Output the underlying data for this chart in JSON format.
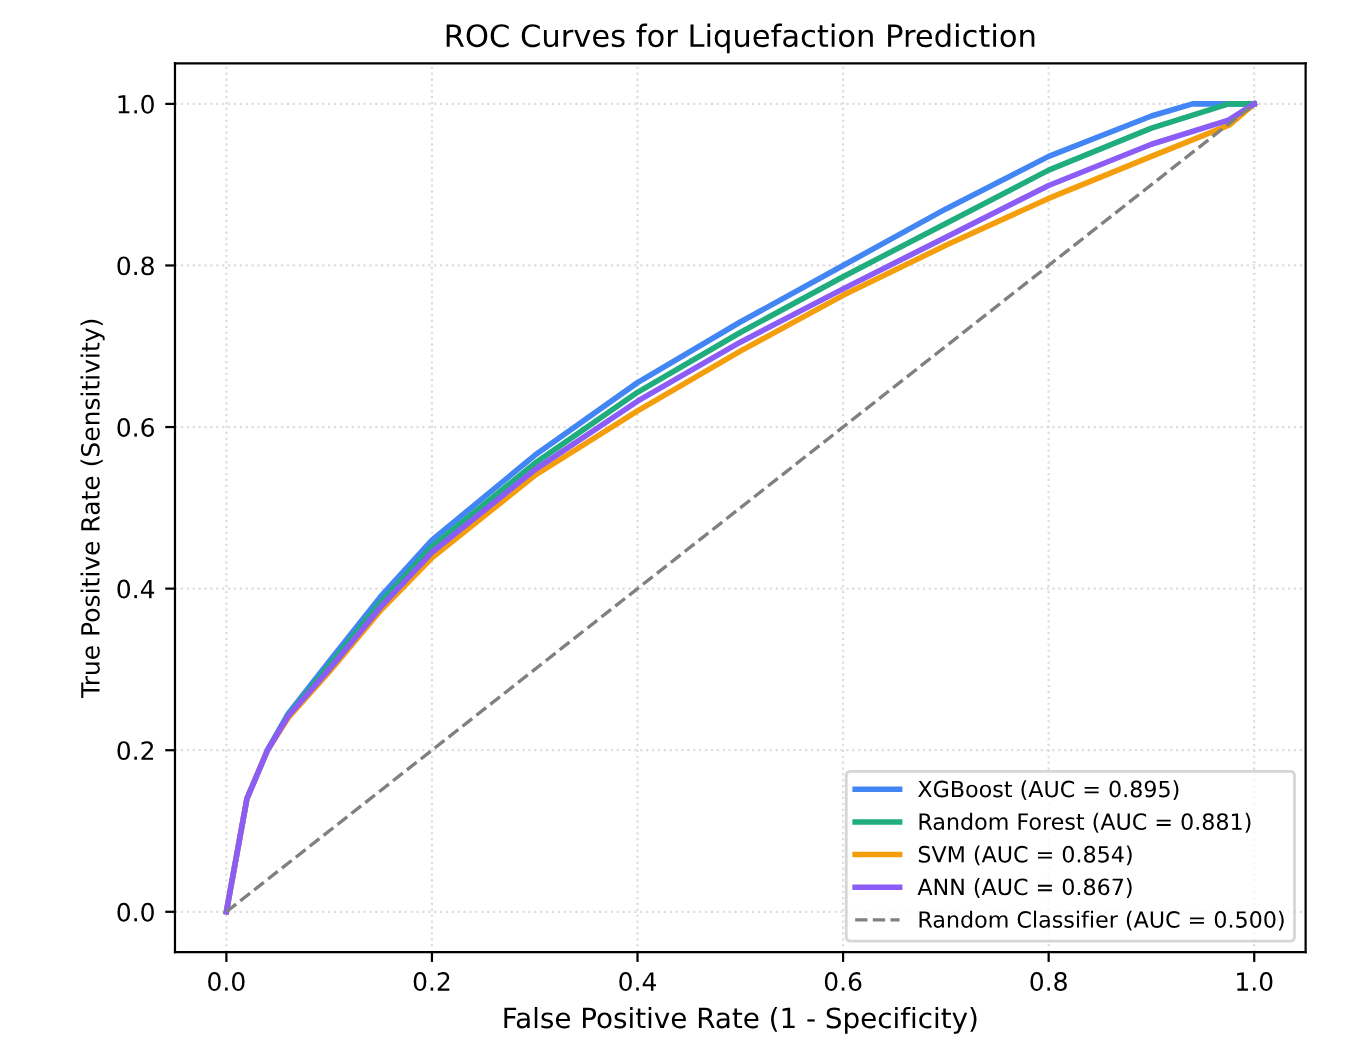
{
  "chart_data": {
    "type": "line",
    "title": "ROC Curves for Liquefaction Prediction",
    "xlabel": "False Positive Rate (1 - Specificity)",
    "ylabel": "True Positive Rate (Sensitivity)",
    "xlim": [
      -0.05,
      1.05
    ],
    "ylim": [
      -0.05,
      1.05
    ],
    "xticks": [
      {
        "value": 0,
        "label": "0.0"
      },
      {
        "value": 0.2,
        "label": "0.2"
      },
      {
        "value": 0.4,
        "label": "0.4"
      },
      {
        "value": 0.6,
        "label": "0.6"
      },
      {
        "value": 0.8,
        "label": "0.8"
      },
      {
        "value": 1,
        "label": "1.0"
      }
    ],
    "yticks": [
      {
        "value": 0,
        "label": "0.0"
      },
      {
        "value": 0.2,
        "label": "0.2"
      },
      {
        "value": 0.4,
        "label": "0.4"
      },
      {
        "value": 0.6,
        "label": "0.6"
      },
      {
        "value": 0.8,
        "label": "0.8"
      },
      {
        "value": 1,
        "label": "1.0"
      }
    ],
    "grid": true,
    "legend": "bottom right",
    "series": [
      {
        "name": "XGBoost (AUC = 0.895)",
        "color": "#4285f4",
        "line_style": "solid",
        "x": [
          0,
          0.02,
          0.04,
          0.06,
          0.1,
          0.15,
          0.2,
          0.3,
          0.4,
          0.5,
          0.6,
          0.7,
          0.8,
          0.9,
          0.94,
          1
        ],
        "values": [
          0,
          0.14,
          0.2,
          0.245,
          0.31,
          0.39,
          0.46,
          0.565,
          0.655,
          0.73,
          0.8,
          0.87,
          0.935,
          0.985,
          1,
          1
        ]
      },
      {
        "name": "Random Forest (AUC = 0.881)",
        "color": "#1fad7e",
        "line_style": "solid",
        "x": [
          0.04,
          0.06,
          0.1,
          0.15,
          0.2,
          0.3,
          0.4,
          0.5,
          0.6,
          0.7,
          0.8,
          0.9,
          0.975,
          1
        ],
        "values": [
          0.2,
          0.243,
          0.305,
          0.383,
          0.452,
          0.555,
          0.643,
          0.717,
          0.786,
          0.852,
          0.918,
          0.97,
          1,
          1
        ]
      },
      {
        "name": "SVM (AUC = 0.854)",
        "color": "#f59e0b",
        "line_style": "solid",
        "x": [
          0,
          0.02,
          0.04,
          0.06,
          0.1,
          0.15,
          0.2,
          0.3,
          0.4,
          0.5,
          0.6,
          0.7,
          0.8,
          0.9,
          0.976,
          1
        ],
        "values": [
          0,
          0.14,
          0.2,
          0.24,
          0.297,
          0.373,
          0.438,
          0.54,
          0.62,
          0.694,
          0.763,
          0.825,
          0.883,
          0.935,
          0.974,
          1
        ]
      },
      {
        "name": "ANN (AUC = 0.867)",
        "color": "#8b5cf6",
        "line_style": "solid",
        "x": [
          0,
          0.02,
          0.04,
          0.06,
          0.1,
          0.15,
          0.2,
          0.3,
          0.4,
          0.5,
          0.6,
          0.7,
          0.8,
          0.9,
          0.975,
          1
        ],
        "values": [
          0,
          0.14,
          0.2,
          0.242,
          0.3,
          0.377,
          0.445,
          0.547,
          0.632,
          0.705,
          0.771,
          0.835,
          0.899,
          0.95,
          0.98,
          1
        ]
      },
      {
        "name": "Random Classifier (AUC = 0.500)",
        "color": "#808080",
        "line_style": "dashed",
        "x": [
          0,
          1
        ],
        "values": [
          0,
          1
        ]
      }
    ]
  }
}
